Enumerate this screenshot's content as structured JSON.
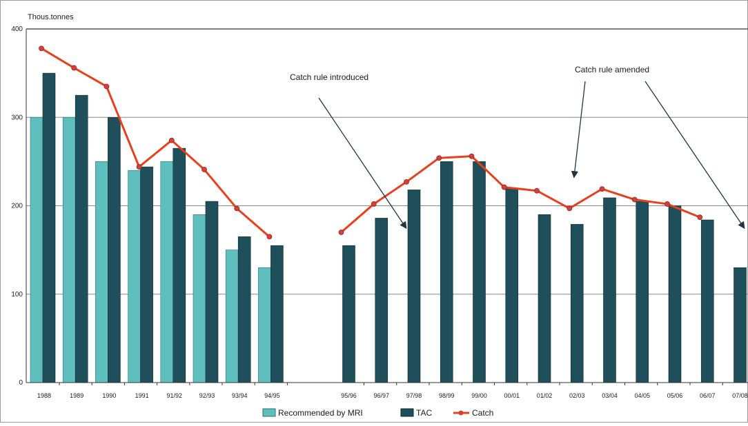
{
  "chart_data": {
    "type": "bar",
    "unit_label": "Thous.tonnes",
    "categories": [
      "1988",
      "1989",
      "1990",
      "1991",
      "91/92",
      "92/93",
      "93/94",
      "94/95",
      "95/96",
      "96/97",
      "97/98",
      "98/99",
      "99/00",
      "00/01",
      "01/02",
      "02/03",
      "03/04",
      "04/05",
      "05/06",
      "06/07",
      "07/08"
    ],
    "ylim": [
      0,
      400
    ],
    "yticks": [
      0,
      100,
      200,
      300,
      400
    ],
    "grid": true,
    "legend_position": "bottom",
    "series": [
      {
        "name": "Recommended by MRI",
        "type": "bar",
        "color": "#5fbfbf",
        "values": [
          300,
          300,
          250,
          240,
          250,
          190,
          150,
          130,
          null,
          null,
          null,
          null,
          null,
          null,
          null,
          null,
          null,
          null,
          null,
          null,
          null
        ]
      },
      {
        "name": "TAC",
        "type": "bar",
        "color": "#1f4f5a",
        "values": [
          350,
          325,
          300,
          244,
          265,
          205,
          165,
          155,
          155,
          186,
          218,
          250,
          250,
          220,
          190,
          179,
          209,
          205,
          200,
          184,
          130
        ]
      },
      {
        "name": "Catch",
        "type": "line",
        "color": "#e8401c",
        "values": [
          378,
          356,
          335,
          244,
          274,
          241,
          197,
          165,
          170,
          202,
          227,
          254,
          256,
          221,
          217,
          197,
          219,
          207,
          202,
          187,
          null
        ]
      }
    ],
    "annotations": [
      {
        "text": "Catch rule introduced"
      },
      {
        "text": "Catch rule amended"
      }
    ]
  }
}
